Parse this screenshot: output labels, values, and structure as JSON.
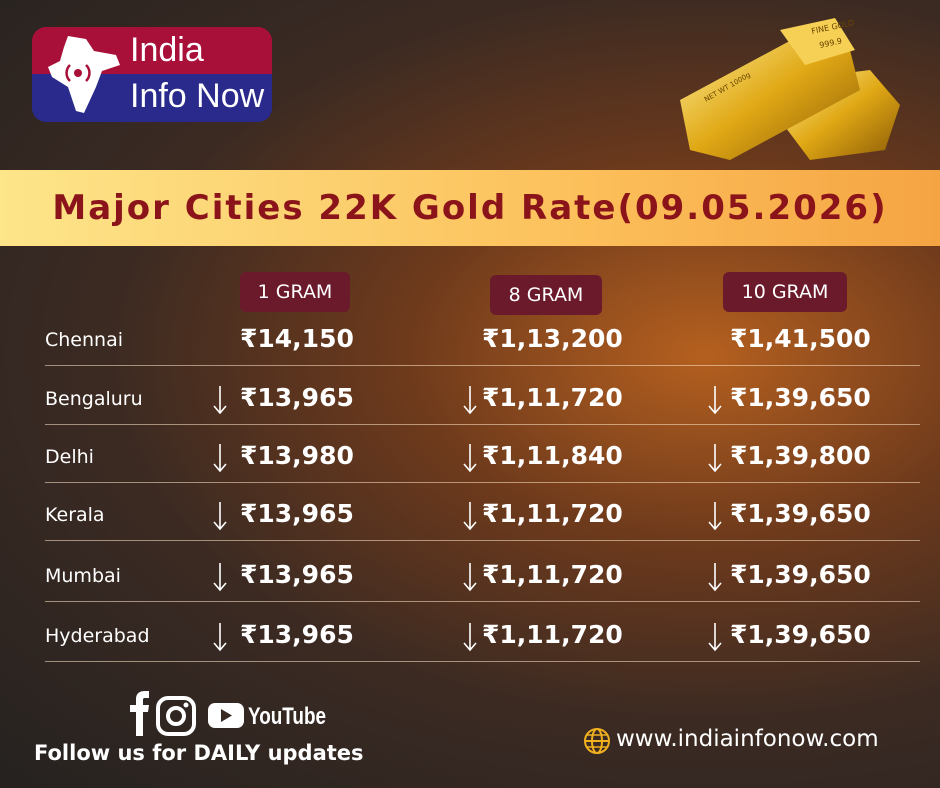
{
  "logo": {
    "line1": "India",
    "line2": "Info Now"
  },
  "gold_bar": {
    "stamp": "FINE GOLD",
    "purity": "999.9",
    "weight": "NET WT 1000g"
  },
  "title": "Major Cities 22K Gold Rate(09.05.2026)",
  "table": {
    "columns": [
      "1 GRAM",
      "8 GRAM",
      "10 GRAM"
    ],
    "rows": [
      {
        "city": "Chennai",
        "prices": [
          "₹14,150",
          "₹1,13,200",
          "₹1,41,500"
        ],
        "trend": "same"
      },
      {
        "city": "Bengaluru",
        "prices": [
          "₹13,965",
          "₹1,11,720",
          "₹1,39,650"
        ],
        "trend": "down"
      },
      {
        "city": "Delhi",
        "prices": [
          "₹13,980",
          "₹1,11,840",
          "₹1,39,800"
        ],
        "trend": "down"
      },
      {
        "city": "Kerala",
        "prices": [
          "₹13,965",
          "₹1,11,720",
          "₹1,39,650"
        ],
        "trend": "down"
      },
      {
        "city": "Mumbai",
        "prices": [
          "₹13,965",
          "₹1,11,720",
          "₹1,39,650"
        ],
        "trend": "down"
      },
      {
        "city": "Hyderabad",
        "prices": [
          "₹13,965",
          "₹1,11,720",
          "₹1,39,650"
        ],
        "trend": "down"
      }
    ]
  },
  "footer": {
    "youtube": "YouTube",
    "follow": "Follow  us for DAILY updates",
    "website": "www.indiainfonow.com"
  }
}
